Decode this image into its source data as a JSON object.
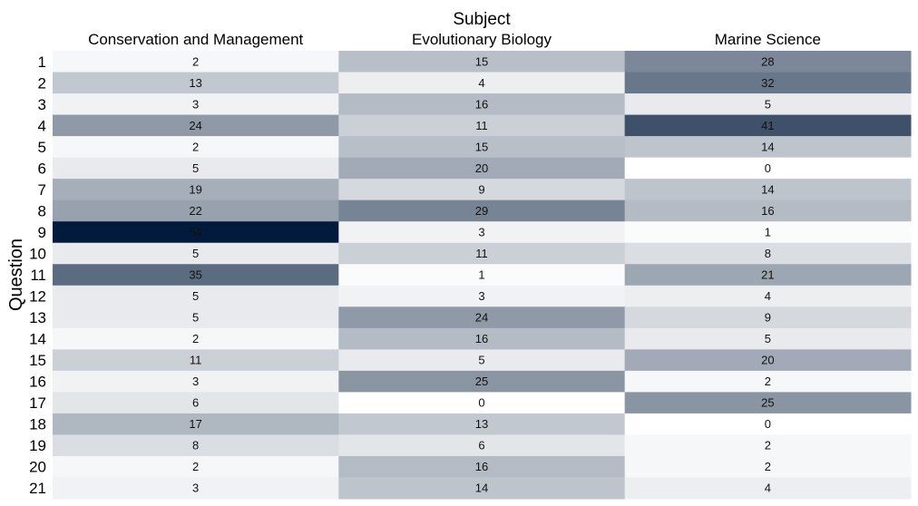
{
  "chart_data": {
    "type": "heatmap",
    "column_title": "Subject",
    "row_title": "Question",
    "columns": [
      "Conservation and Management",
      "Evolutionary Biology",
      "Marine Science"
    ],
    "rows": [
      "1",
      "2",
      "3",
      "4",
      "5",
      "6",
      "7",
      "8",
      "9",
      "10",
      "11",
      "12",
      "13",
      "14",
      "15",
      "16",
      "17",
      "18",
      "19",
      "20",
      "21"
    ],
    "values": [
      [
        2,
        15,
        28
      ],
      [
        13,
        4,
        32
      ],
      [
        3,
        16,
        5
      ],
      [
        24,
        11,
        41
      ],
      [
        2,
        15,
        14
      ],
      [
        5,
        20,
        0
      ],
      [
        19,
        9,
        14
      ],
      [
        22,
        29,
        16
      ],
      [
        54,
        3,
        1
      ],
      [
        5,
        11,
        8
      ],
      [
        35,
        1,
        21
      ],
      [
        5,
        3,
        4
      ],
      [
        5,
        24,
        9
      ],
      [
        2,
        16,
        5
      ],
      [
        11,
        5,
        20
      ],
      [
        3,
        25,
        2
      ],
      [
        6,
        0,
        25
      ],
      [
        17,
        13,
        0
      ],
      [
        8,
        6,
        2
      ],
      [
        2,
        16,
        2
      ],
      [
        3,
        14,
        4
      ]
    ],
    "value_range": [
      0,
      54
    ],
    "colormap": [
      "#ffffff",
      "#021a3b"
    ],
    "grid": false,
    "legend": "none"
  }
}
